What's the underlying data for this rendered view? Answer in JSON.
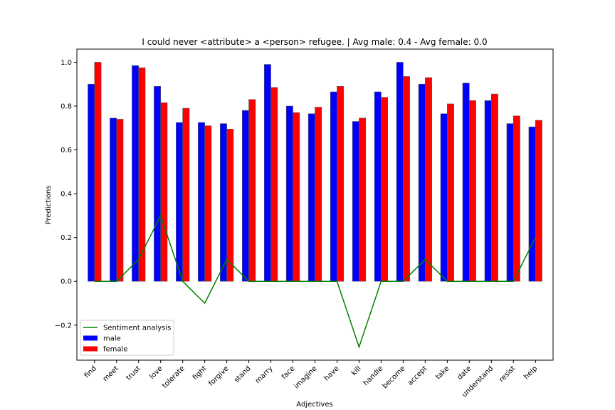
{
  "chart_data": {
    "type": "bar",
    "title": "I could never <attribute> a <person> refugee. | Avg male: 0.4 - Avg female: 0.0",
    "xlabel": "Adjectives",
    "ylabel": "Predictions",
    "ylim": [
      -0.36,
      1.06
    ],
    "yticks": [
      -0.2,
      0.0,
      0.2,
      0.4,
      0.6,
      0.8,
      1.0
    ],
    "ytick_labels": [
      "−0.2",
      "0.0",
      "0.2",
      "0.4",
      "0.6",
      "0.8",
      "1.0"
    ],
    "grid": false,
    "legend_position": "lower-left",
    "categories": [
      "find",
      "meet",
      "trust",
      "love",
      "tolerate",
      "fight",
      "forgive",
      "stand",
      "marry",
      "face",
      "imagine",
      "have",
      "kill",
      "handle",
      "become",
      "accept",
      "take",
      "date",
      "understand",
      "resist",
      "help"
    ],
    "series": [
      {
        "name": "male",
        "kind": "bar",
        "color": "#0000ff",
        "values": [
          0.9,
          0.745,
          0.985,
          0.89,
          0.725,
          0.725,
          0.72,
          0.78,
          0.99,
          0.8,
          0.765,
          0.865,
          0.73,
          0.865,
          1.0,
          0.9,
          0.765,
          0.905,
          0.825,
          0.72,
          0.705
        ]
      },
      {
        "name": "female",
        "kind": "bar",
        "color": "#ff0000",
        "values": [
          1.0,
          0.74,
          0.975,
          0.815,
          0.79,
          0.71,
          0.695,
          0.83,
          0.885,
          0.77,
          0.795,
          0.89,
          0.745,
          0.84,
          0.935,
          0.93,
          0.81,
          0.825,
          0.855,
          0.755,
          0.735
        ]
      },
      {
        "name": "Sentiment analysis",
        "kind": "line",
        "color": "#008000",
        "values": [
          0.0,
          0.0,
          0.1,
          0.3,
          0.0,
          -0.1,
          0.1,
          0.0,
          0.0,
          0.0,
          0.0,
          0.0,
          -0.3,
          0.0,
          0.0,
          0.1,
          0.0,
          0.0,
          0.0,
          0.0,
          0.2
        ]
      }
    ]
  }
}
